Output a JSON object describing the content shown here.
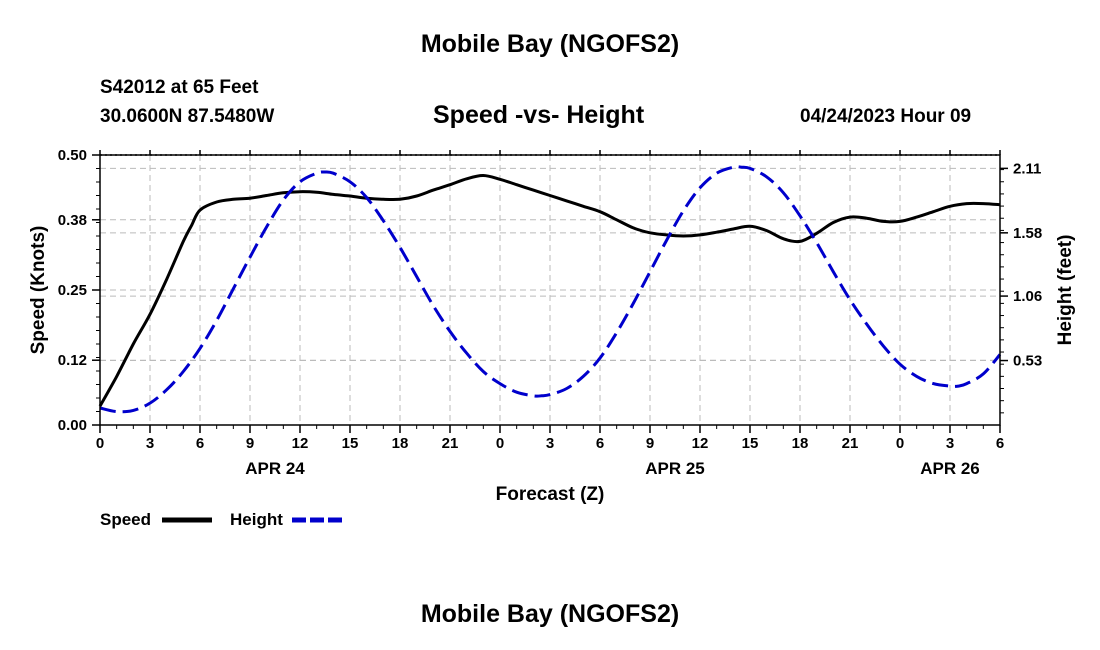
{
  "header": {
    "title": "Mobile Bay (NGOFS2)",
    "station": "S42012 at 65 Feet",
    "coords": "30.0600N  87.5480W",
    "chart_title": "Speed -vs- Height",
    "datetime": "04/24/2023 Hour 09"
  },
  "footer": {
    "title": "Mobile Bay (NGOFS2)"
  },
  "legend": {
    "speed_label": "Speed",
    "height_label": "Height"
  },
  "colors": {
    "speed": "#000000",
    "height": "#0000cc",
    "grid": "#bbbbbb"
  },
  "chart_data": {
    "type": "line",
    "title": "Speed -vs- Height",
    "xlabel": "Forecast (Z)",
    "ylabel_left": "Speed (Knots)",
    "ylabel_right": "Height (feet)",
    "x_hours": [
      0,
      3,
      6,
      9,
      12,
      15,
      18,
      21,
      24,
      27,
      30,
      33,
      36,
      39,
      42,
      45,
      48,
      51,
      54
    ],
    "x_tick_labels": [
      "0",
      "3",
      "6",
      "9",
      "12",
      "15",
      "18",
      "21",
      "0",
      "3",
      "6",
      "9",
      "12",
      "15",
      "18",
      "21",
      "0",
      "3",
      "6"
    ],
    "date_labels": [
      {
        "label": "APR 24",
        "hour": 10.5
      },
      {
        "label": "APR 25",
        "hour": 34.5
      },
      {
        "label": "APR 26",
        "hour": 51.0
      }
    ],
    "y_left": {
      "range": [
        0,
        0.5
      ],
      "ticks": [
        0.0,
        0.12,
        0.25,
        0.38,
        0.5
      ],
      "tick_labels": [
        "0.00",
        "0.12",
        "0.25",
        "0.38",
        "0.50"
      ]
    },
    "y_right": {
      "range": [
        0.0,
        2.22
      ],
      "ticks": [
        0.53,
        1.06,
        1.58,
        2.11
      ],
      "tick_labels": [
        "0.53",
        "1.06",
        "1.58",
        "2.11"
      ]
    },
    "series": [
      {
        "name": "Speed",
        "axis": "left",
        "style": "solid",
        "x": [
          0,
          1,
          2,
          3,
          4,
          5,
          5.5,
          6,
          7,
          8,
          9,
          10,
          11,
          12,
          13,
          14,
          15,
          16,
          17,
          18,
          19,
          20,
          21,
          22,
          23,
          24,
          25,
          26,
          27,
          28,
          29,
          30,
          31,
          32,
          33,
          34,
          35,
          36,
          37,
          38,
          39,
          40,
          41,
          42,
          43,
          44,
          45,
          46,
          47,
          48,
          49,
          50,
          51,
          52,
          53,
          54
        ],
        "y": [
          0.035,
          0.09,
          0.15,
          0.205,
          0.27,
          0.34,
          0.37,
          0.398,
          0.413,
          0.418,
          0.42,
          0.425,
          0.43,
          0.432,
          0.431,
          0.427,
          0.424,
          0.42,
          0.418,
          0.418,
          0.424,
          0.435,
          0.445,
          0.456,
          0.462,
          0.455,
          0.445,
          0.435,
          0.425,
          0.415,
          0.405,
          0.395,
          0.38,
          0.365,
          0.356,
          0.352,
          0.35,
          0.352,
          0.357,
          0.363,
          0.368,
          0.36,
          0.345,
          0.34,
          0.355,
          0.375,
          0.385,
          0.383,
          0.377,
          0.377,
          0.385,
          0.395,
          0.405,
          0.41,
          0.41,
          0.408
        ]
      },
      {
        "name": "Height",
        "axis": "right",
        "style": "dashed",
        "x": [
          0,
          1,
          2,
          3,
          4,
          5,
          6,
          7,
          8,
          9,
          10,
          11,
          12,
          13,
          13.5,
          14,
          15,
          16,
          17,
          18,
          19,
          20,
          21,
          22,
          23,
          24,
          25,
          26,
          26.5,
          27,
          28,
          29,
          30,
          31,
          32,
          33,
          34,
          35,
          36,
          37,
          38,
          38.5,
          39,
          40,
          41,
          42,
          43,
          44,
          45,
          46,
          47,
          48,
          49,
          50,
          51,
          51.5,
          52,
          53,
          54
        ],
        "y": [
          0.14,
          0.11,
          0.12,
          0.18,
          0.29,
          0.44,
          0.63,
          0.86,
          1.12,
          1.38,
          1.63,
          1.85,
          2.0,
          2.07,
          2.08,
          2.07,
          2.0,
          1.87,
          1.68,
          1.46,
          1.22,
          0.98,
          0.77,
          0.59,
          0.44,
          0.34,
          0.27,
          0.24,
          0.24,
          0.25,
          0.3,
          0.4,
          0.55,
          0.76,
          1.0,
          1.26,
          1.52,
          1.76,
          1.95,
          2.07,
          2.12,
          2.12,
          2.11,
          2.04,
          1.91,
          1.72,
          1.5,
          1.26,
          1.03,
          0.83,
          0.65,
          0.5,
          0.4,
          0.34,
          0.32,
          0.32,
          0.34,
          0.42,
          0.58
        ]
      }
    ]
  }
}
